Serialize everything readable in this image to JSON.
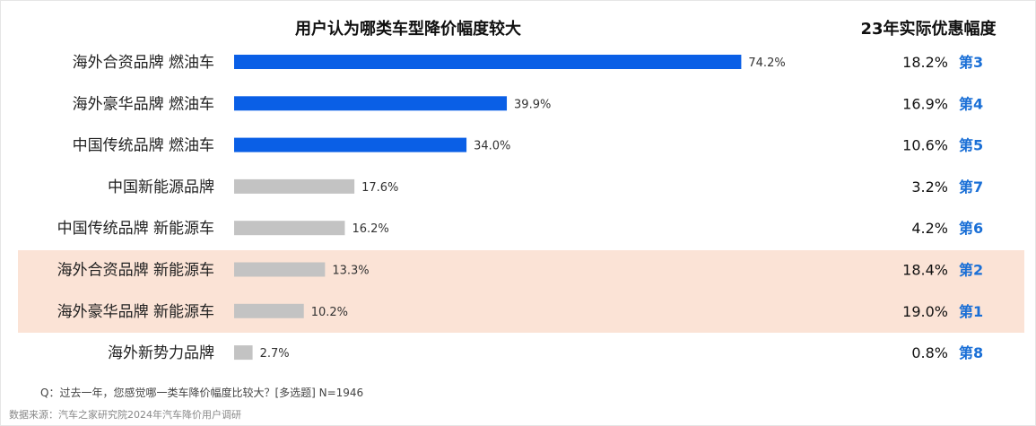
{
  "title": "用户认为哪类车型降价幅度较大",
  "right_title": "23年实际优惠幅度",
  "note": "Q：过去一年，您感觉哪一类车降价幅度比较大？[多选题] N=1946",
  "source": "数据来源：汽车之家研究院2024年汽车降价用户调研",
  "colors": {
    "blue": "#0a5fe6",
    "gray": "#c3c3c3",
    "highlight": "#fbe3d6",
    "rank": "#1a6fd6"
  },
  "chart_data": {
    "type": "bar",
    "orientation": "horizontal",
    "title": "用户认为哪类车型降价幅度较大",
    "categories": [
      "海外合资品牌 燃油车",
      "海外豪华品牌 燃油车",
      "中国传统品牌 燃油车",
      "中国新能源品牌",
      "中国传统品牌 新能源车",
      "海外合资品牌 新能源车",
      "海外豪华品牌 新能源车",
      "海外新势力品牌"
    ],
    "values": [
      74.2,
      39.9,
      34.0,
      17.6,
      16.2,
      13.3,
      10.2,
      2.7
    ],
    "value_labels": [
      "74.2%",
      "39.9%",
      "34.0%",
      "17.6%",
      "16.2%",
      "13.3%",
      "10.2%",
      "2.7%"
    ],
    "bar_colors": [
      "blue",
      "blue",
      "blue",
      "gray",
      "gray",
      "gray",
      "gray",
      "gray"
    ],
    "highlighted_rows": [
      5,
      6
    ],
    "xlim": [
      0,
      100
    ],
    "actual_discount": [
      "18.2%",
      "16.9%",
      "10.6%",
      "3.2%",
      "4.2%",
      "18.4%",
      "19.0%",
      "0.8%"
    ],
    "actual_rank": [
      "第3",
      "第4",
      "第5",
      "第7",
      "第6",
      "第2",
      "第1",
      "第8"
    ]
  }
}
